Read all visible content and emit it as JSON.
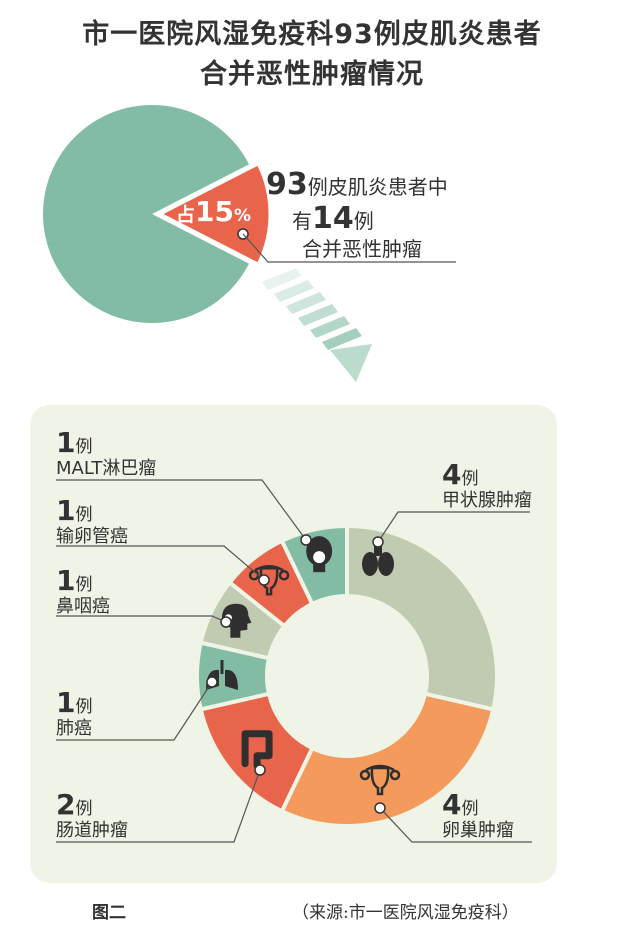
{
  "title": {
    "line1": "市一医院风湿免疫科93例皮肌炎患者",
    "line2": "合并恶性肿瘤情况"
  },
  "colors": {
    "green": "#82bca4",
    "red": "#e8644b",
    "orange": "#f39a5c",
    "sage": "#c0cbb2",
    "panel": "#eff4e6",
    "icon": "#2f2f2f",
    "text": "#333333"
  },
  "chart_data": [
    {
      "type": "pie",
      "slices": [
        {
          "label": "皮肌炎患者",
          "value": 79,
          "color": "#82bca4"
        },
        {
          "label": "合并恶性肿瘤",
          "value": 14,
          "color": "#e8644b"
        }
      ],
      "slice_label": {
        "prefix": "占",
        "value": "15",
        "unit": "%"
      },
      "annotation": {
        "line1_num": "93",
        "line1_text": "例皮肌炎患者中",
        "line2_pre": "有",
        "line2_num": "14",
        "line2_text": "例",
        "line3": "合并恶性肿瘤"
      }
    },
    {
      "type": "pie",
      "donut": true,
      "slices": [
        {
          "label": "甲状腺肿瘤",
          "count": "4",
          "unit": "例",
          "value": 4,
          "color": "#c0cbb2",
          "icon": "thyroid-icon"
        },
        {
          "label": "卵巢肿瘤",
          "count": "4",
          "unit": "例",
          "value": 4,
          "color": "#f39a5c",
          "icon": "uterus-icon"
        },
        {
          "label": "肠道肿瘤",
          "count": "2",
          "unit": "例",
          "value": 2,
          "color": "#e8644b",
          "icon": "intestine-icon"
        },
        {
          "label": "肺癌",
          "count": "1",
          "unit": "例",
          "value": 1,
          "color": "#82bca4",
          "icon": "lungs-icon"
        },
        {
          "label": "鼻咽癌",
          "count": "1",
          "unit": "例",
          "value": 1,
          "color": "#c0cbb2",
          "icon": "head-profile-icon"
        },
        {
          "label": "输卵管癌",
          "count": "1",
          "unit": "例",
          "value": 1,
          "color": "#e8644b",
          "icon": "uterus-icon"
        },
        {
          "label": "MALT淋巴瘤",
          "count": "1",
          "unit": "例",
          "value": 1,
          "color": "#82bca4",
          "icon": "head-front-icon"
        }
      ]
    }
  ],
  "footer": {
    "label": "图二",
    "source": "（来源:市一医院风湿免疫科）"
  }
}
